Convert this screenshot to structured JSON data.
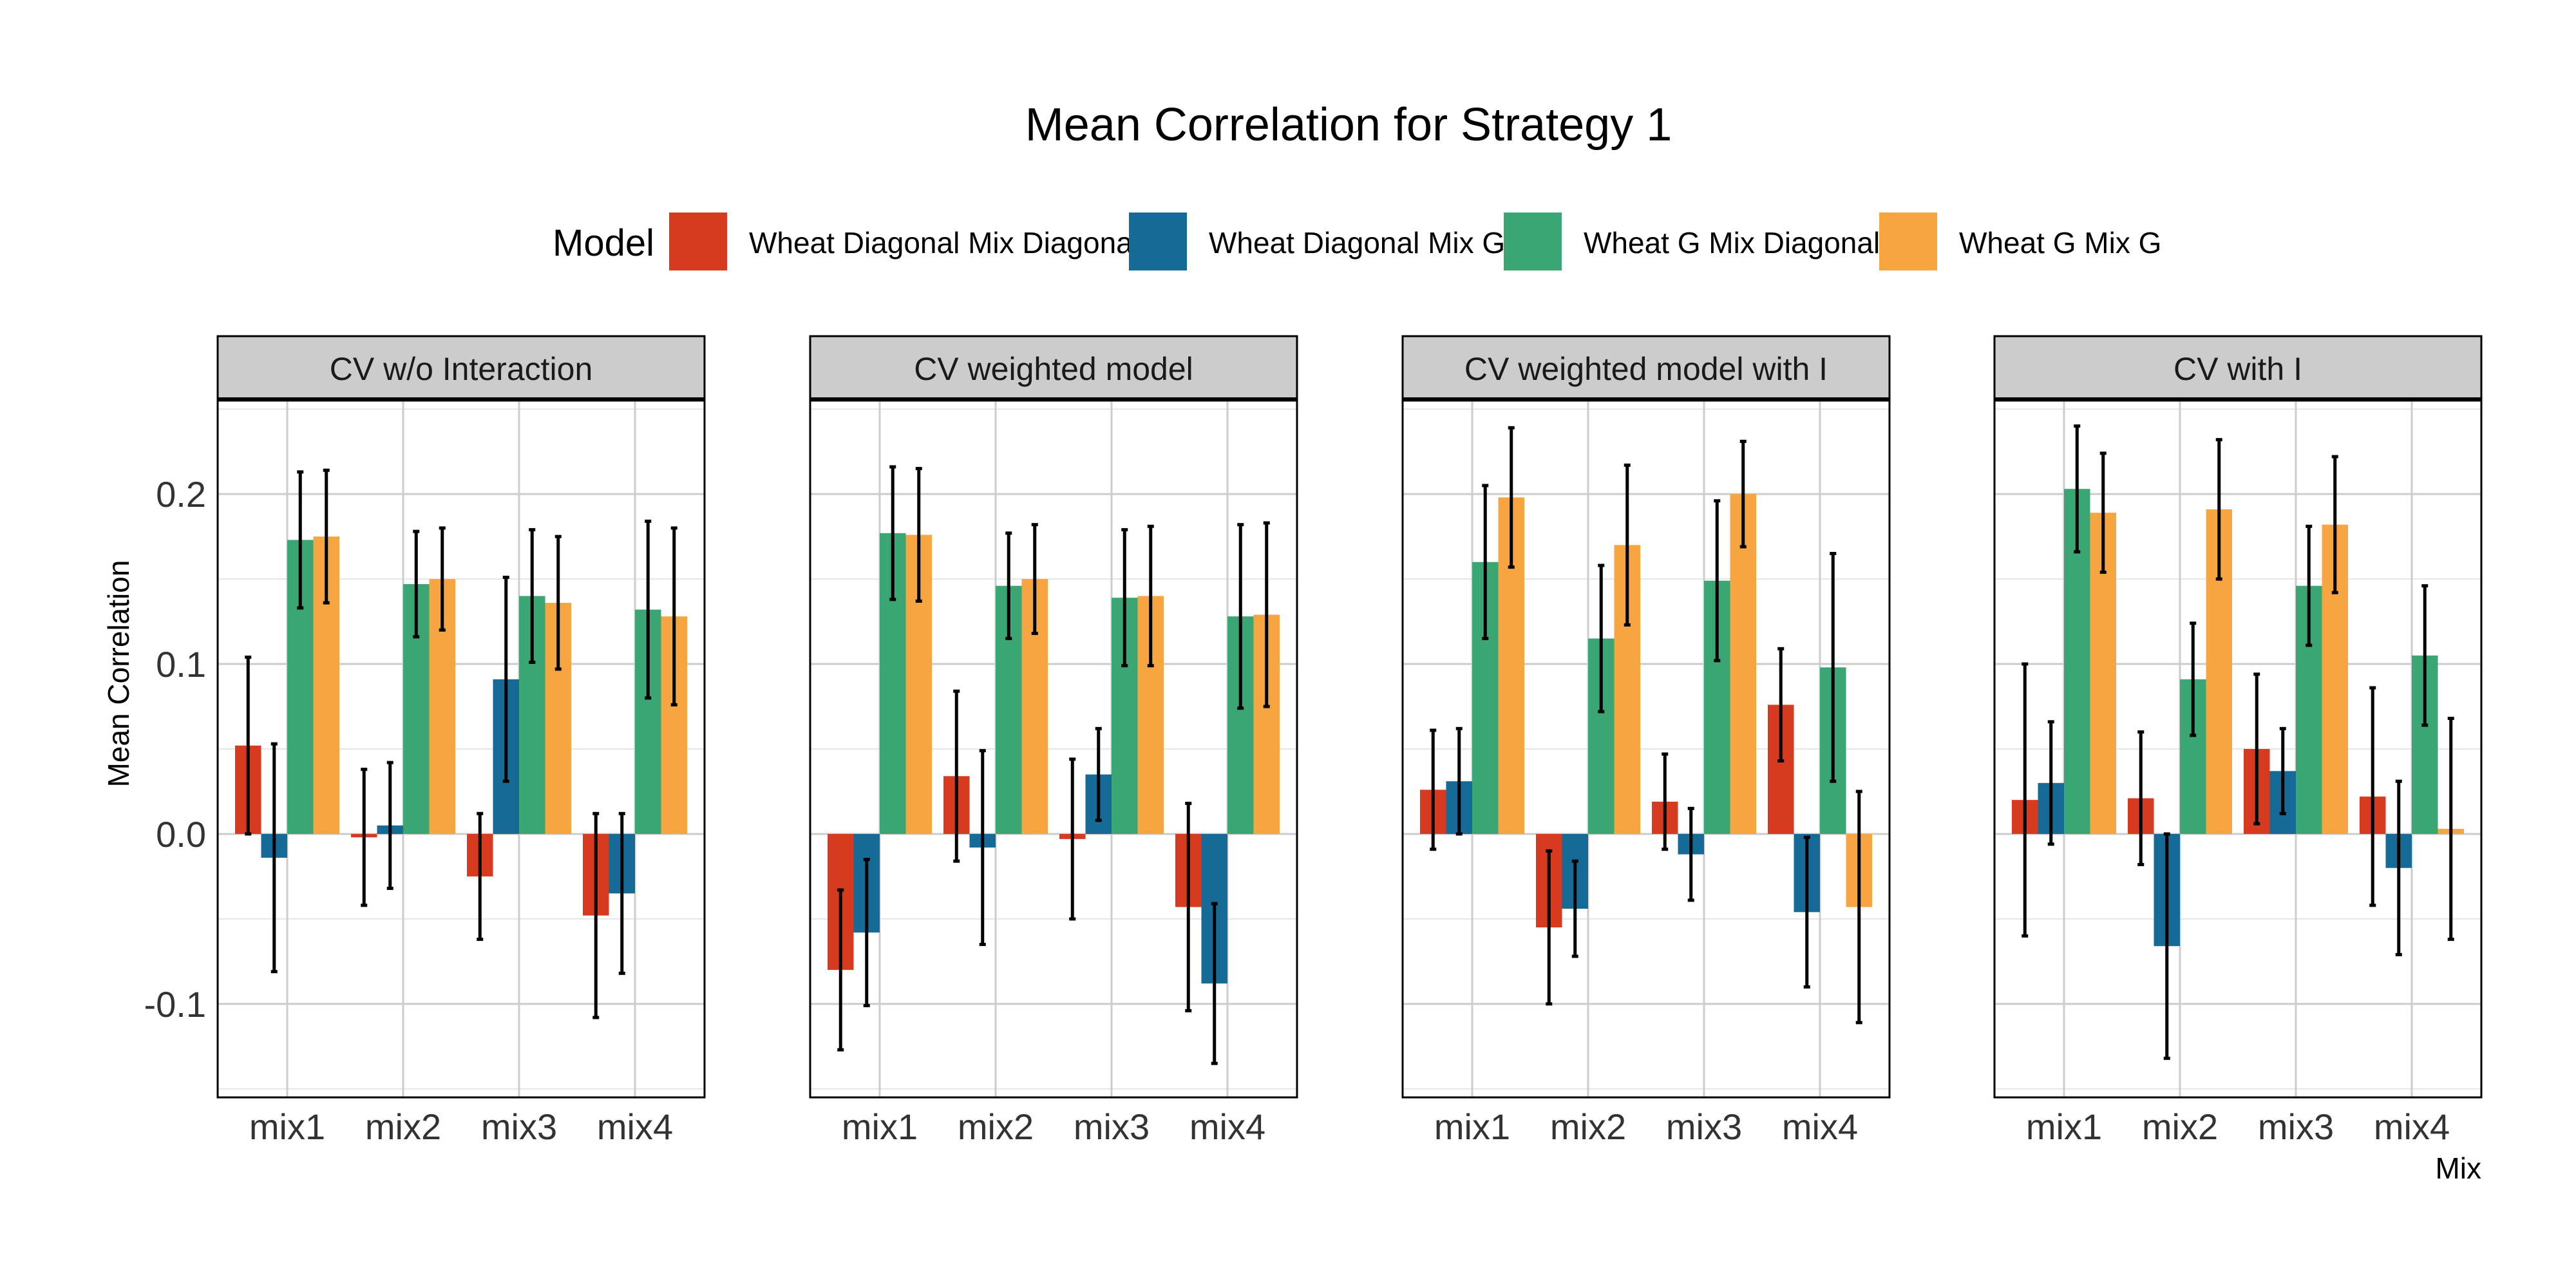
{
  "chart_data": {
    "type": "bar",
    "title": "Mean Correlation for Strategy 1",
    "xlabel": "Mix",
    "ylabel": "Mean Correlation",
    "ylim": [
      -0.155,
      0.255
    ],
    "yticks": [
      -0.1,
      0.0,
      0.1,
      0.2
    ],
    "ytick_labels": [
      "-0.1",
      "0.0",
      "0.1",
      "0.2"
    ],
    "grid": true,
    "legend_title": "Model",
    "legend_position": "top",
    "categories": [
      "mix1",
      "mix2",
      "mix3",
      "mix4"
    ],
    "series_names": [
      "Wheat Diagonal Mix Diagonal",
      "Wheat Diagonal Mix G",
      "Wheat G Mix Diagonal",
      "Wheat G Mix G"
    ],
    "colors": [
      "#d63b20",
      "#166a96",
      "#3aa673",
      "#f7a541"
    ],
    "panels": [
      {
        "title": "CV w/o Interaction",
        "values": [
          [
            0.052,
            -0.002,
            -0.025,
            -0.048
          ],
          [
            -0.014,
            0.005,
            0.091,
            -0.035
          ],
          [
            0.173,
            0.147,
            0.14,
            0.132
          ],
          [
            0.175,
            0.15,
            0.136,
            0.128
          ]
        ],
        "errors": [
          [
            0.052,
            0.04,
            0.037,
            0.06
          ],
          [
            0.067,
            0.037,
            0.06,
            0.047
          ],
          [
            0.04,
            0.031,
            0.039,
            0.052
          ],
          [
            0.039,
            0.03,
            0.039,
            0.052
          ]
        ]
      },
      {
        "title": "CV weighted model",
        "values": [
          [
            -0.08,
            0.034,
            -0.003,
            -0.043
          ],
          [
            -0.058,
            -0.008,
            0.035,
            -0.088
          ],
          [
            0.177,
            0.146,
            0.139,
            0.128
          ],
          [
            0.176,
            0.15,
            0.14,
            0.129
          ]
        ],
        "errors": [
          [
            0.047,
            0.05,
            0.047,
            0.061
          ],
          [
            0.043,
            0.057,
            0.027,
            0.047
          ],
          [
            0.039,
            0.031,
            0.04,
            0.054
          ],
          [
            0.039,
            0.032,
            0.041,
            0.054
          ]
        ]
      },
      {
        "title": "CV weighted model with I",
        "values": [
          [
            0.026,
            -0.055,
            0.019,
            0.076
          ],
          [
            0.031,
            -0.044,
            -0.012,
            -0.046
          ],
          [
            0.16,
            0.115,
            0.149,
            0.098
          ],
          [
            0.198,
            0.17,
            0.2,
            -0.043
          ]
        ],
        "errors": [
          [
            0.035,
            0.045,
            0.028,
            0.033
          ],
          [
            0.031,
            0.028,
            0.027,
            0.044
          ],
          [
            0.045,
            0.043,
            0.047,
            0.067
          ],
          [
            0.041,
            0.047,
            0.031,
            0.068
          ]
        ]
      },
      {
        "title": "CV with I",
        "values": [
          [
            0.02,
            0.021,
            0.05,
            0.022
          ],
          [
            0.03,
            -0.066,
            0.037,
            -0.02
          ],
          [
            0.203,
            0.091,
            0.146,
            0.105
          ],
          [
            0.189,
            0.191,
            0.182,
            0.003
          ]
        ],
        "errors": [
          [
            0.08,
            0.039,
            0.044,
            0.064
          ],
          [
            0.036,
            0.066,
            0.025,
            0.051
          ],
          [
            0.037,
            0.033,
            0.035,
            0.041
          ],
          [
            0.035,
            0.041,
            0.04,
            0.065
          ]
        ]
      }
    ]
  }
}
